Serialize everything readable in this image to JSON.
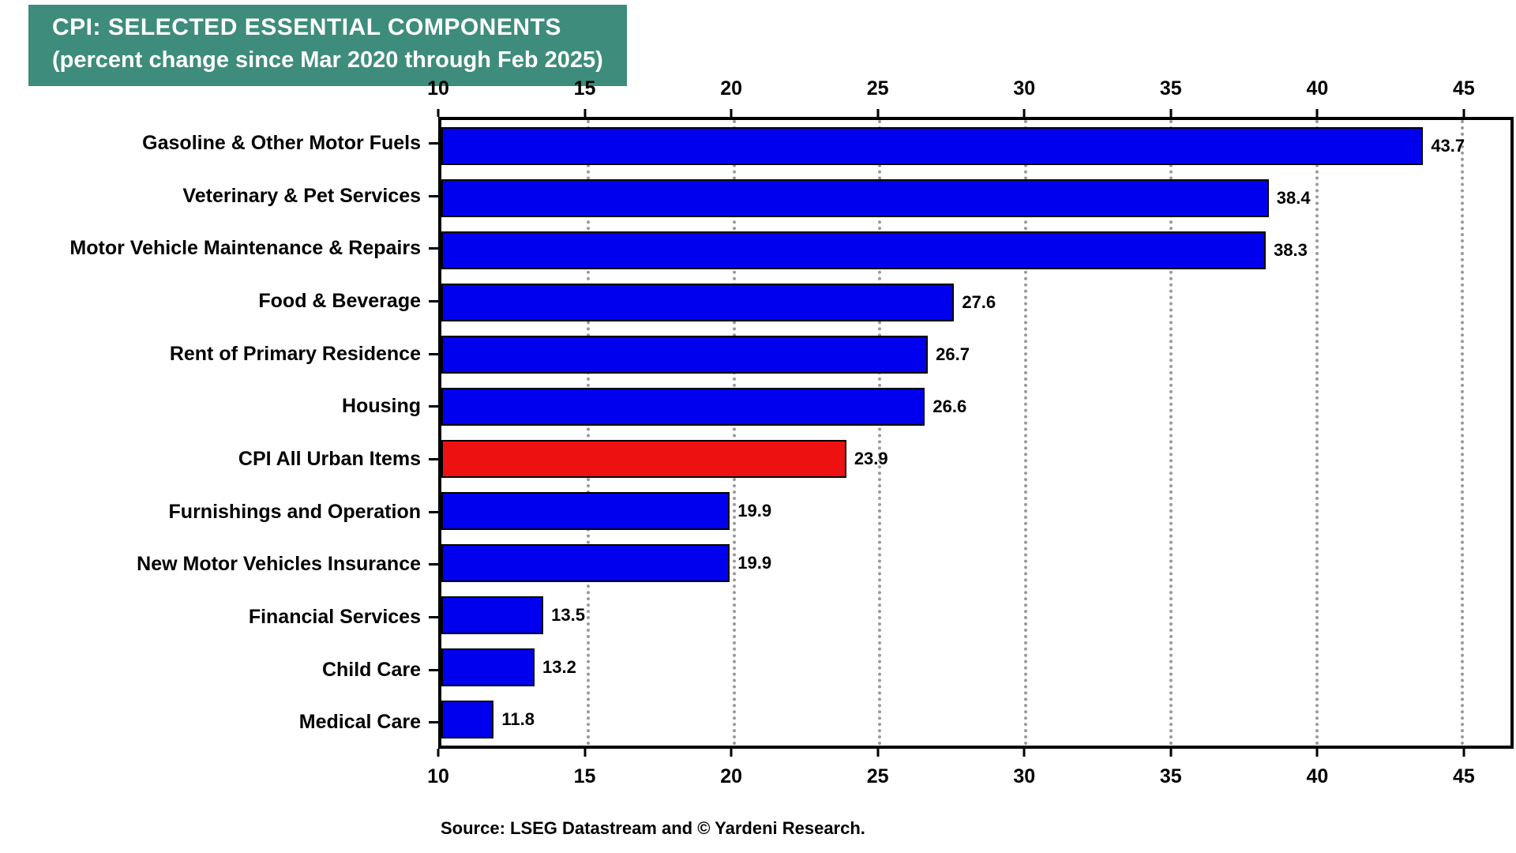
{
  "title": {
    "line1": "CPI: SELECTED ESSENTIAL COMPONENTS",
    "line2": "(percent change since Mar 2020 through Feb 2025)"
  },
  "source": "Source: LSEG Datastream and © Yardeni Research.",
  "colors": {
    "title_bg": "#3E8C7B",
    "title_text": "#FFFFFF",
    "bar_blue": "#0000EE",
    "bar_red": "#EE1111",
    "bar_outline": "#000000",
    "gridline": "#9A9A9A",
    "axis": "#000000"
  },
  "chart_data": {
    "type": "bar",
    "orientation": "horizontal",
    "title": "CPI: SELECTED ESSENTIAL COMPONENTS (percent change since Mar 2020 through Feb 2025)",
    "categories": [
      "Gasoline & Other Motor Fuels",
      "Veterinary & Pet Services",
      "Motor Vehicle Maintenance & Repairs",
      "Food & Beverage",
      "Rent of Primary Residence",
      "Housing",
      "CPI All Urban Items",
      "Furnishings and Operation",
      "New Motor Vehicles Insurance",
      "Financial Services",
      "Child Care",
      "Medical Care"
    ],
    "values": [
      43.7,
      38.4,
      38.3,
      27.6,
      26.7,
      26.6,
      23.9,
      19.9,
      19.9,
      13.5,
      13.2,
      11.8
    ],
    "highlight": {
      "category": "CPI All Urban Items",
      "index": 6
    },
    "xlim": [
      10,
      46.7
    ],
    "xticks": [
      10,
      15,
      20,
      25,
      30,
      35,
      40,
      45
    ],
    "grid": "vertical-dotted",
    "legend": "none",
    "value_labels": true,
    "xlabel": "",
    "ylabel": ""
  }
}
